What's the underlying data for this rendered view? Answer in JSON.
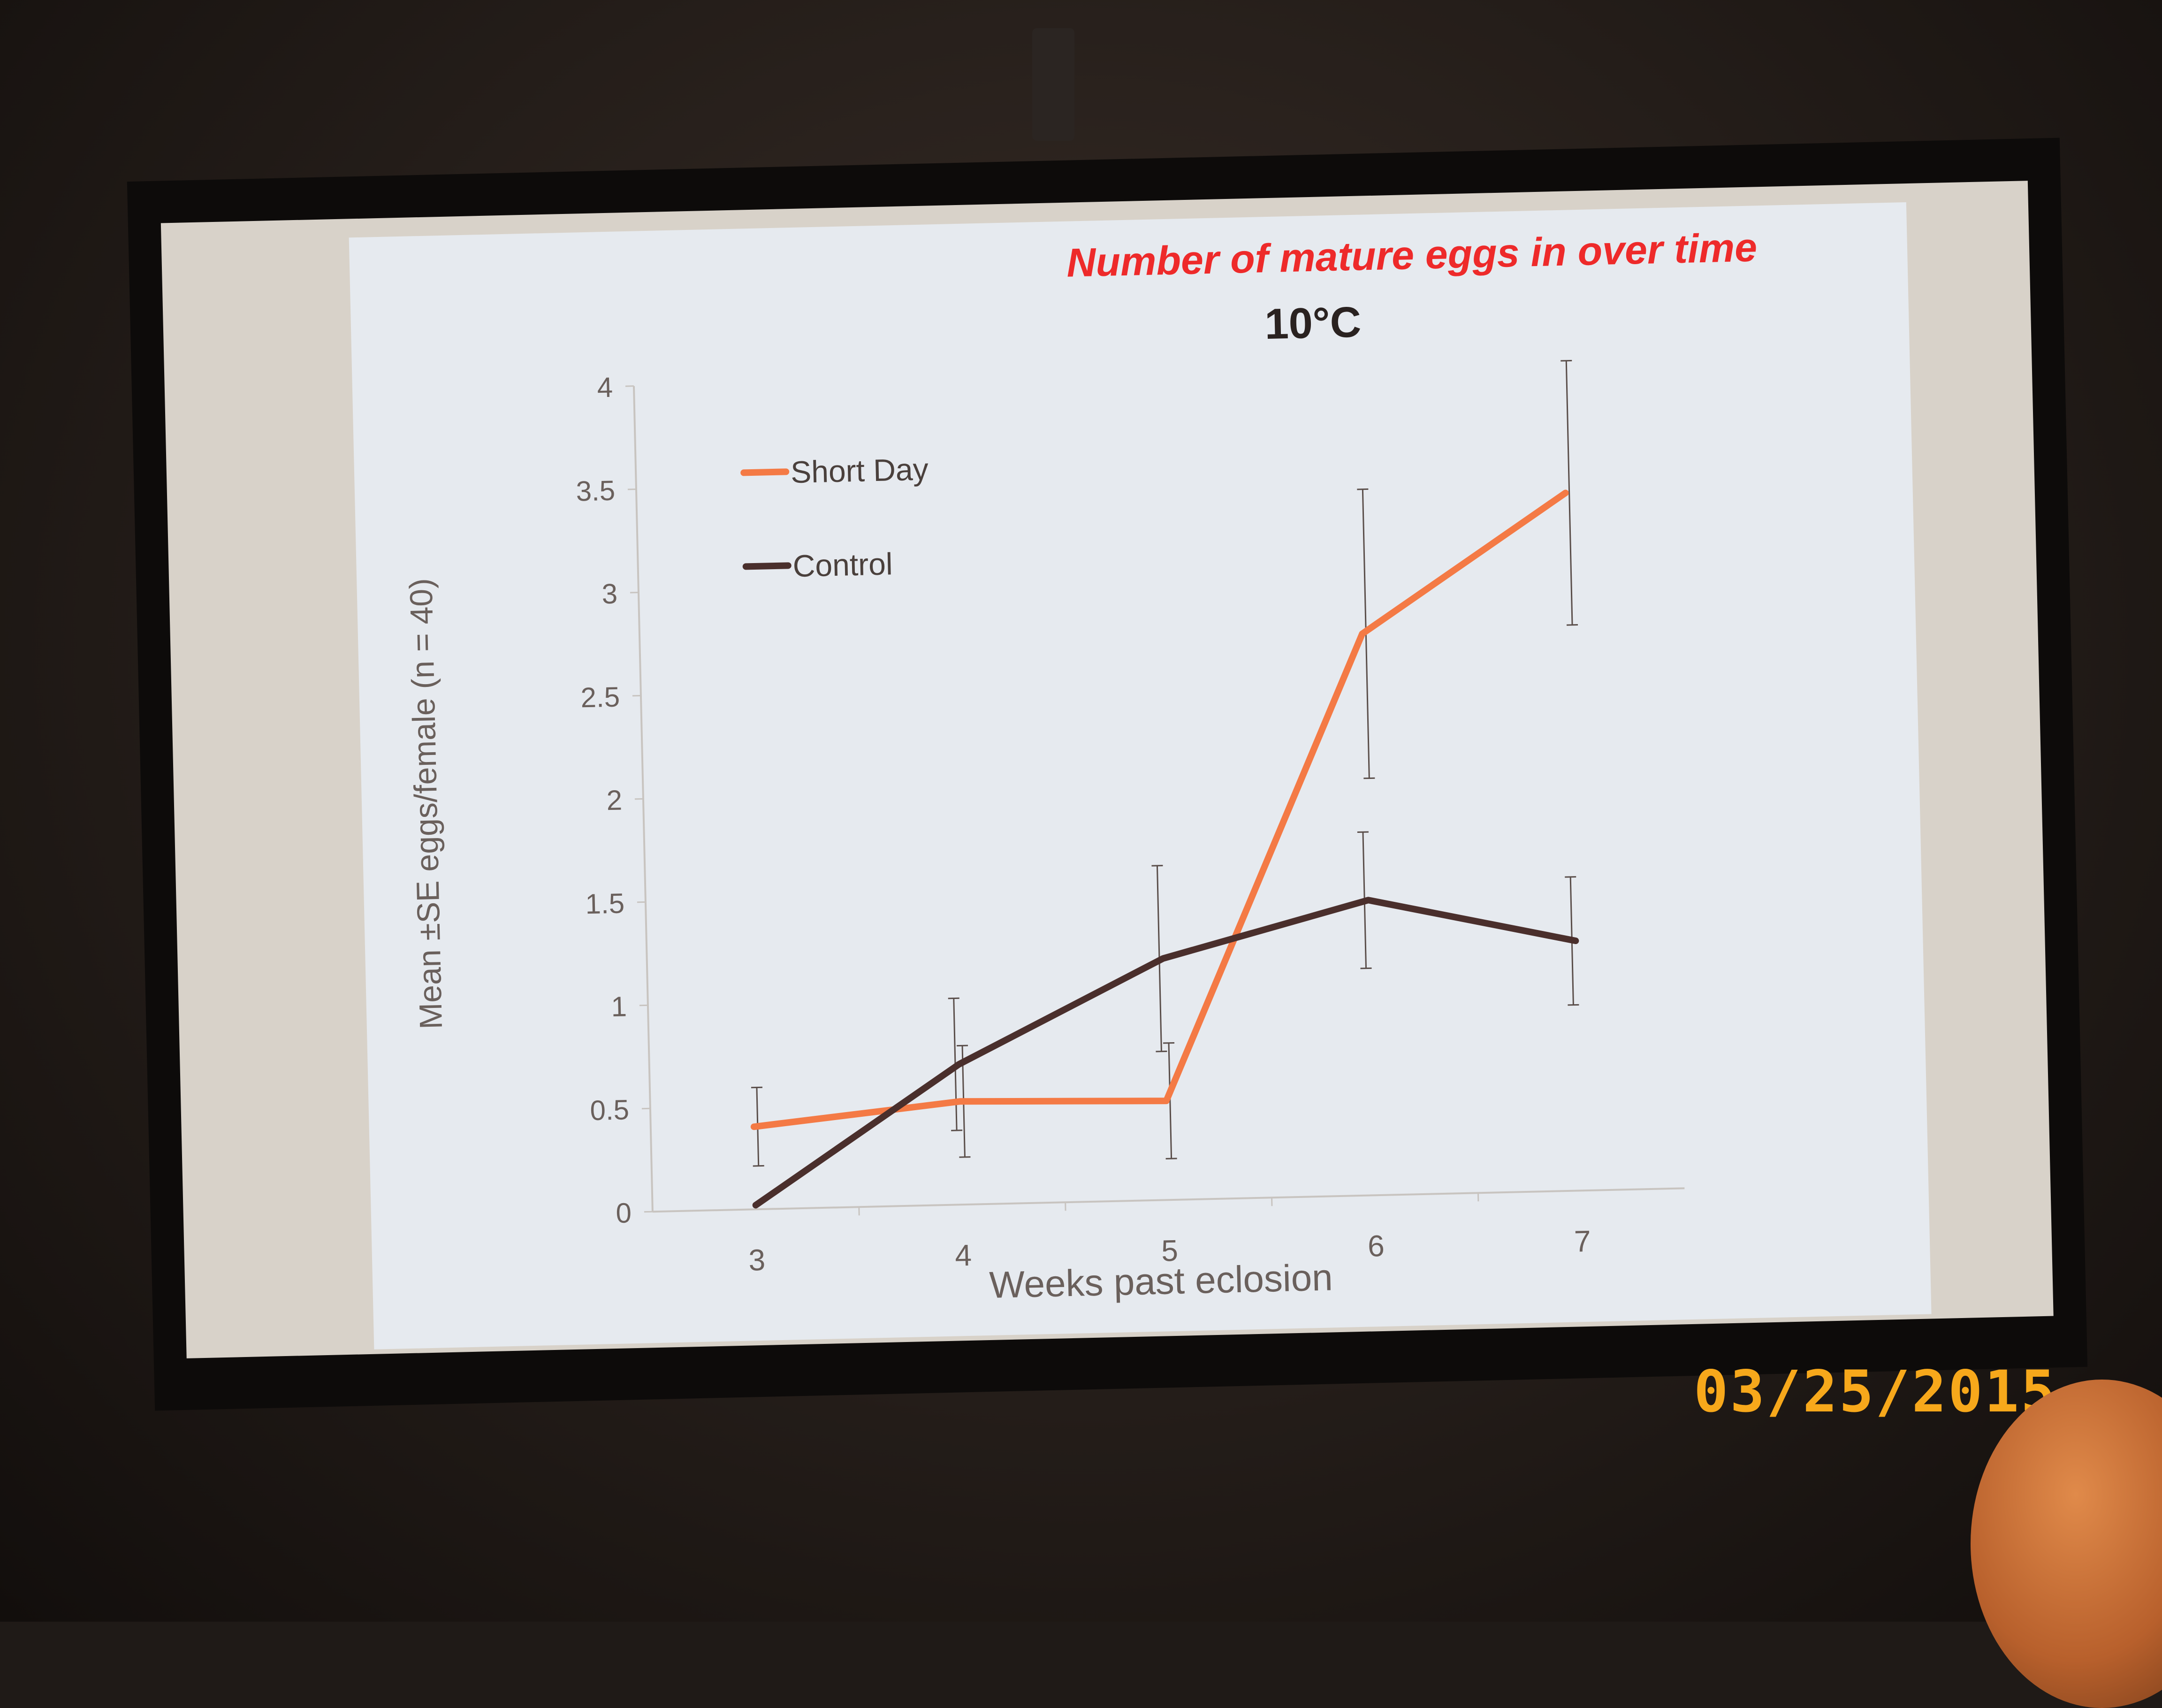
{
  "slide": {
    "title": "Number of mature eggs in over time"
  },
  "date_stamp": "03/25/2015",
  "chart_data": {
    "type": "line",
    "title": "10°C",
    "xlabel": "Weeks past eclosion",
    "ylabel": "Mean ±SE eggs/female (n = 40)",
    "x": [
      3,
      4,
      5,
      6,
      7
    ],
    "x_tick_labels": [
      "3",
      "4",
      "5",
      "6",
      "7"
    ],
    "ylim": [
      0,
      4
    ],
    "y_ticks": [
      0,
      0.5,
      1,
      1.5,
      2,
      2.5,
      3,
      3.5,
      4
    ],
    "y_tick_labels": [
      "0",
      "0.5",
      "1",
      "1.5",
      "2",
      "2.5",
      "3",
      "3.5",
      "4"
    ],
    "legend_position": "top-left",
    "grid": false,
    "series": [
      {
        "name": "Short Day",
        "color": "#f47a45",
        "values": [
          0.4,
          0.5,
          0.48,
          2.72,
          3.38
        ],
        "se": [
          0.19,
          0.27,
          0.28,
          0.7,
          0.64
        ]
      },
      {
        "name": "Control",
        "color": "#4a2f2c",
        "values": [
          0.02,
          0.68,
          1.17,
          1.43,
          1.21
        ],
        "se": [
          0.0,
          0.32,
          0.45,
          0.33,
          0.31
        ]
      }
    ]
  }
}
